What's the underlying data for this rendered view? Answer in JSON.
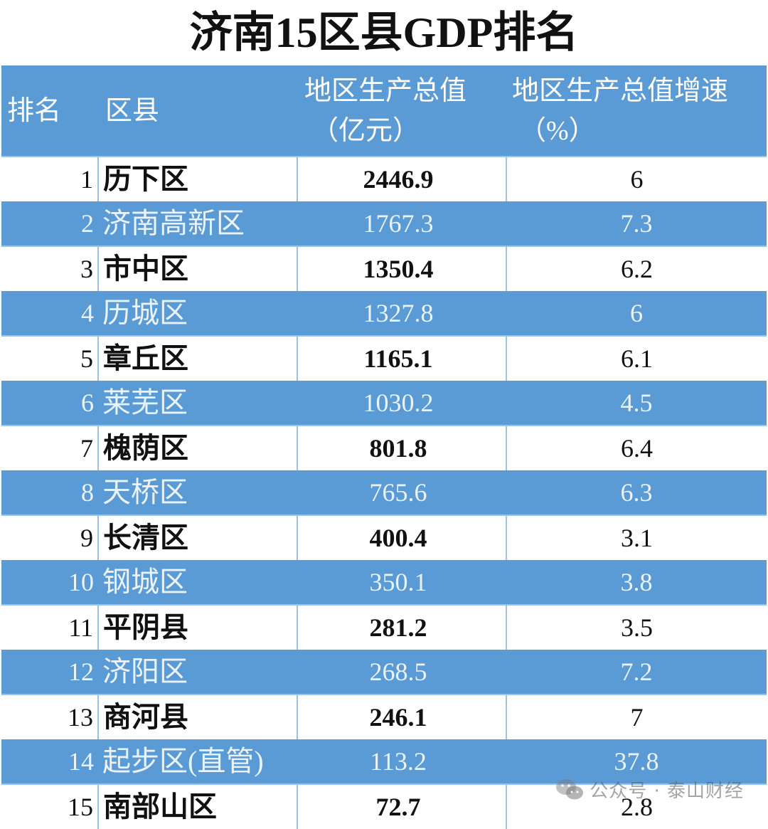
{
  "title": "济南15区县GDP排名",
  "headers": {
    "rank": "排名",
    "name": "区县",
    "gdp_line1": "地区生产总值",
    "gdp_line2": "（亿元）",
    "growth_line1": "地区生产总值增速",
    "growth_line2": "（%）"
  },
  "rows": [
    {
      "rank": "1",
      "name": "历下区",
      "gdp": "2446.9",
      "growth": "6"
    },
    {
      "rank": "2",
      "name": "济南高新区",
      "gdp": "1767.3",
      "growth": "7.3"
    },
    {
      "rank": "3",
      "name": "市中区",
      "gdp": "1350.4",
      "growth": "6.2"
    },
    {
      "rank": "4",
      "name": "历城区",
      "gdp": "1327.8",
      "growth": "6"
    },
    {
      "rank": "5",
      "name": "章丘区",
      "gdp": "1165.1",
      "growth": "6.1"
    },
    {
      "rank": "6",
      "name": "莱芜区",
      "gdp": "1030.2",
      "growth": "4.5"
    },
    {
      "rank": "7",
      "name": "槐荫区",
      "gdp": "801.8",
      "growth": "6.4"
    },
    {
      "rank": "8",
      "name": "天桥区",
      "gdp": "765.6",
      "growth": "6.3"
    },
    {
      "rank": "9",
      "name": "长清区",
      "gdp": "400.4",
      "growth": "3.1"
    },
    {
      "rank": "10",
      "name": "钢城区",
      "gdp": "350.1",
      "growth": "3.8"
    },
    {
      "rank": "11",
      "name": "平阴县",
      "gdp": "281.2",
      "growth": "3.5"
    },
    {
      "rank": "12",
      "name": "济阳区",
      "gdp": "268.5",
      "growth": "7.2"
    },
    {
      "rank": "13",
      "name": "商河县",
      "gdp": "246.1",
      "growth": "7"
    },
    {
      "rank": "14",
      "name": "起步区(直管)",
      "gdp": "113.2",
      "growth": "37.8"
    },
    {
      "rank": "15",
      "name": "南部山区",
      "gdp": "72.7",
      "growth": "2.8"
    }
  ],
  "watermark": {
    "prefix": "公众号 · ",
    "account": "泰山财经",
    "icon": "wechat-icon"
  },
  "colors": {
    "header_bg": "#5b9bd5",
    "alt_row_bg": "#5b9bd5",
    "row_bg": "#ffffff"
  }
}
